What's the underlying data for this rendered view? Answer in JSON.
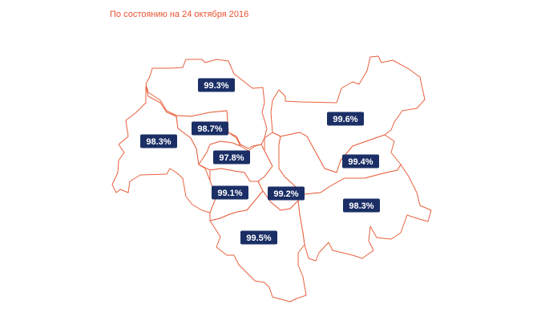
{
  "caption": "По состоянию на 24 октября 2016",
  "colors": {
    "caption": "#e8512f",
    "border": "#e8613f",
    "badge": "#1b2f66",
    "badge_text": "#ffffff"
  },
  "districts": [
    {
      "id": "north",
      "value": "99.3%"
    },
    {
      "id": "west",
      "value": "98.3%"
    },
    {
      "id": "center-north",
      "value": "98.7%"
    },
    {
      "id": "center",
      "value": "97.8%"
    },
    {
      "id": "south-center",
      "value": "99.1%"
    },
    {
      "id": "east-north",
      "value": "99.6%"
    },
    {
      "id": "east-mid",
      "value": "99.4%"
    },
    {
      "id": "center-east",
      "value": "99.2%"
    },
    {
      "id": "southeast",
      "value": "98.3%"
    },
    {
      "id": "south",
      "value": "99.5%"
    }
  ]
}
